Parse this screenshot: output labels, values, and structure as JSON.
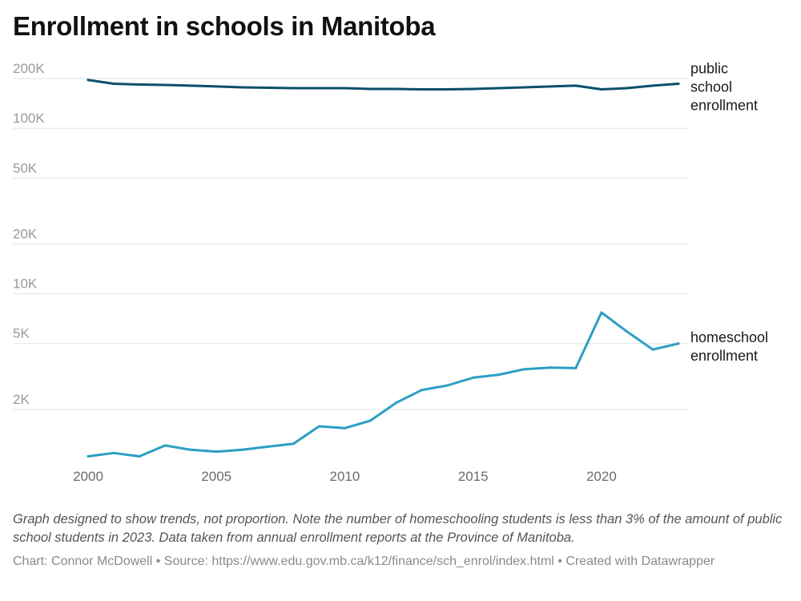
{
  "chart_data": {
    "type": "line",
    "title": "Enrollment in schools in Manitoba",
    "y_scale": "log",
    "ylim": [
      1000,
      200000
    ],
    "y_ticks": [
      {
        "value": 200000,
        "label": "200K"
      },
      {
        "value": 100000,
        "label": "100K"
      },
      {
        "value": 50000,
        "label": "50K"
      },
      {
        "value": 20000,
        "label": "20K"
      },
      {
        "value": 10000,
        "label": "10K"
      },
      {
        "value": 5000,
        "label": "5K"
      },
      {
        "value": 2000,
        "label": "2K"
      }
    ],
    "x_ticks": [
      2000,
      2005,
      2010,
      2015,
      2020
    ],
    "xlim": [
      2000,
      2023
    ],
    "grid": "horizontal",
    "x": [
      2000,
      2001,
      2002,
      2003,
      2004,
      2005,
      2006,
      2007,
      2008,
      2009,
      2010,
      2011,
      2012,
      2013,
      2014,
      2015,
      2016,
      2017,
      2018,
      2019,
      2020,
      2021,
      2022,
      2023
    ],
    "series": [
      {
        "name": "public school enrollment",
        "label_lines": [
          "public",
          "school",
          "enrollment"
        ],
        "color": "#0b4f6c",
        "values": [
          196000,
          186000,
          184000,
          183000,
          181000,
          179000,
          177000,
          176000,
          175000,
          175000,
          175000,
          173000,
          173000,
          172000,
          172000,
          173000,
          175000,
          177000,
          179000,
          181000,
          172000,
          175000,
          181000,
          186000
        ]
      },
      {
        "name": "homeschool enrollment",
        "label_lines": [
          "homeschool",
          "enrollment"
        ],
        "color": "#2a9fc4",
        "values": [
          1040,
          1090,
          1040,
          1210,
          1140,
          1110,
          1140,
          1190,
          1240,
          1580,
          1540,
          1710,
          2190,
          2620,
          2790,
          3110,
          3240,
          3500,
          3580,
          3550,
          7700,
          5900,
          4600,
          5000
        ]
      }
    ]
  },
  "note": "Graph designed to show trends, not proportion. Note the number of homeschooling students is less than 3% of the amount of public school students in 2023. Data taken from annual enrollment reports at the Province of Manitoba.",
  "credits": "Chart: Connor McDowell • Source: https://www.edu.gov.mb.ca/k12/finance/sch_enrol/index.html • Created with Datawrapper"
}
